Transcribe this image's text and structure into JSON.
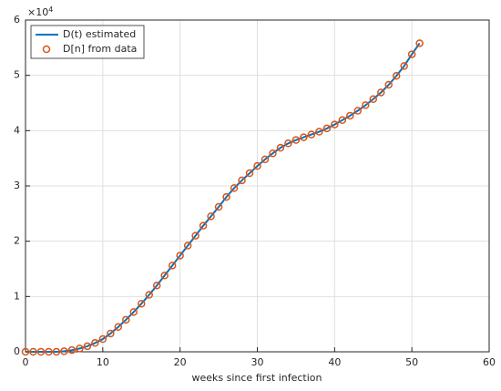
{
  "chart_data": {
    "type": "line",
    "x_label": "weeks since first infection",
    "y_multiplier": {
      "base": "×10",
      "exponent": "4"
    },
    "x": [
      0,
      1,
      2,
      3,
      4,
      5,
      6,
      7,
      8,
      9,
      10,
      11,
      12,
      13,
      14,
      15,
      16,
      17,
      18,
      19,
      20,
      21,
      22,
      23,
      24,
      25,
      26,
      27,
      28,
      29,
      30,
      31,
      32,
      33,
      34,
      35,
      36,
      37,
      38,
      39,
      40,
      41,
      42,
      43,
      44,
      45,
      46,
      47,
      48,
      49,
      50,
      51
    ],
    "series": [
      {
        "name": "D(t) estimated",
        "color": "#0072bd",
        "style": "line",
        "values": [
          0,
          0,
          0,
          0,
          0,
          0.01,
          0.03,
          0.06,
          0.1,
          0.16,
          0.23,
          0.33,
          0.45,
          0.58,
          0.72,
          0.87,
          1.03,
          1.2,
          1.38,
          1.56,
          1.74,
          1.92,
          2.1,
          2.28,
          2.45,
          2.62,
          2.8,
          2.96,
          3.1,
          3.23,
          3.36,
          3.48,
          3.59,
          3.69,
          3.77,
          3.83,
          3.88,
          3.93,
          3.98,
          4.04,
          4.11,
          4.19,
          4.27,
          4.36,
          4.46,
          4.57,
          4.69,
          4.83,
          4.99,
          5.17,
          5.38,
          5.58
        ]
      },
      {
        "name": "D[n] from data",
        "color": "#d95319",
        "style": "marker",
        "values": [
          0,
          0,
          0,
          0,
          0,
          0.01,
          0.03,
          0.06,
          0.1,
          0.16,
          0.23,
          0.33,
          0.45,
          0.58,
          0.72,
          0.87,
          1.03,
          1.2,
          1.38,
          1.56,
          1.74,
          1.92,
          2.1,
          2.28,
          2.45,
          2.62,
          2.8,
          2.96,
          3.1,
          3.23,
          3.36,
          3.48,
          3.59,
          3.69,
          3.77,
          3.83,
          3.88,
          3.93,
          3.98,
          4.04,
          4.11,
          4.19,
          4.27,
          4.36,
          4.46,
          4.57,
          4.69,
          4.83,
          4.99,
          5.17,
          5.38,
          5.58
        ]
      }
    ],
    "xlim": [
      0,
      60
    ],
    "xticks": [
      0,
      10,
      20,
      30,
      40,
      50,
      60
    ],
    "ylim": [
      0,
      6
    ],
    "yticks": [
      0,
      1,
      2,
      3,
      4,
      5,
      6
    ],
    "grid": true,
    "legend": "top-left"
  }
}
